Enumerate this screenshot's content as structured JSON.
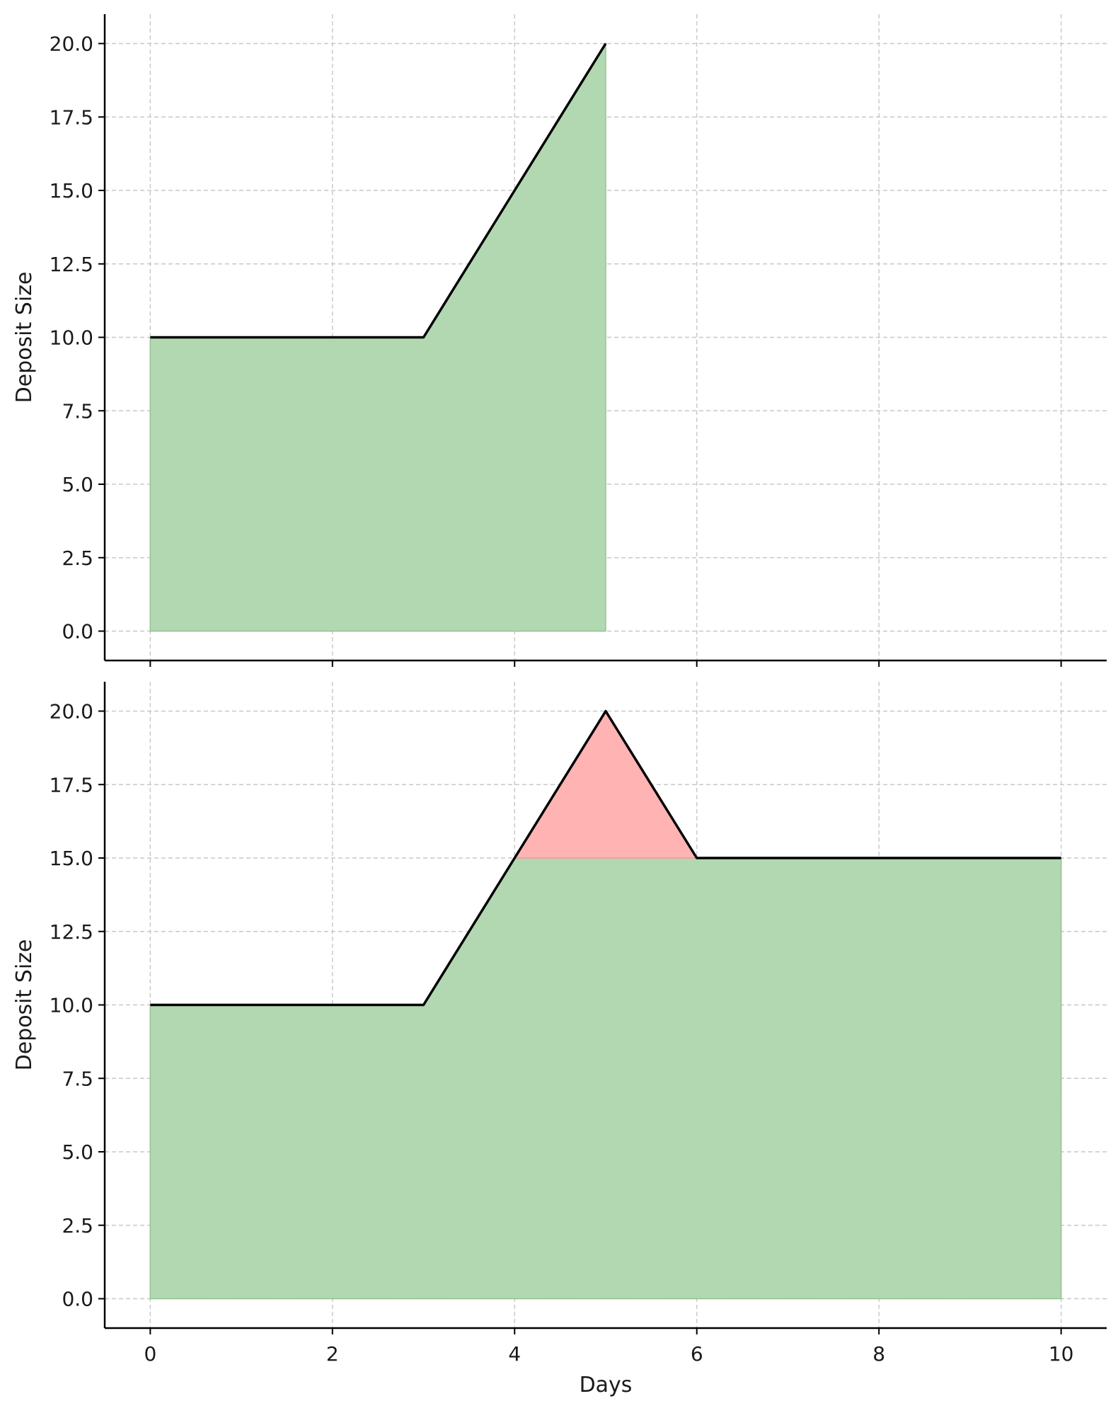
{
  "colors": {
    "area_green": "#b2d8b2",
    "area_red": "#ffb3b3",
    "line": "#000000",
    "grid": "#c8c8c8",
    "axis": "#000000"
  },
  "chart_data": [
    {
      "type": "area",
      "xlabel": "",
      "ylabel": "Deposit Size",
      "xlim": [
        -0.5,
        10.5
      ],
      "ylim": [
        -1,
        21
      ],
      "x_ticks": [
        0,
        2,
        4,
        6,
        8,
        10
      ],
      "x_tick_labels": [
        "",
        "",
        "",
        "",
        "",
        ""
      ],
      "y_ticks": [
        0,
        2.5,
        5,
        7.5,
        10,
        12.5,
        15,
        17.5,
        20
      ],
      "y_tick_labels": [
        "0.0",
        "2.5",
        "5.0",
        "7.5",
        "10.0",
        "12.5",
        "15.0",
        "17.5",
        "20.0"
      ],
      "grid": true,
      "series": [
        {
          "x": [
            0,
            1,
            2,
            3,
            4,
            5
          ],
          "y": [
            10,
            10,
            10,
            10,
            15,
            20
          ]
        }
      ],
      "fills": [
        {
          "color": "green",
          "x": [
            0,
            1,
            2,
            3,
            4,
            5
          ],
          "y_top": [
            10,
            10,
            10,
            10,
            15,
            20
          ],
          "y_bottom": [
            0,
            0,
            0,
            0,
            0,
            0
          ]
        }
      ]
    },
    {
      "type": "area",
      "xlabel": "Days",
      "ylabel": "Deposit Size",
      "xlim": [
        -0.5,
        10.5
      ],
      "ylim": [
        -1,
        21
      ],
      "x_ticks": [
        0,
        2,
        4,
        6,
        8,
        10
      ],
      "x_tick_labels": [
        "0",
        "2",
        "4",
        "6",
        "8",
        "10"
      ],
      "y_ticks": [
        0,
        2.5,
        5,
        7.5,
        10,
        12.5,
        15,
        17.5,
        20
      ],
      "y_tick_labels": [
        "0.0",
        "2.5",
        "5.0",
        "7.5",
        "10.0",
        "12.5",
        "15.0",
        "17.5",
        "20.0"
      ],
      "grid": true,
      "series": [
        {
          "x": [
            0,
            1,
            2,
            3,
            4,
            5,
            6,
            7,
            8,
            9,
            10
          ],
          "y": [
            10,
            10,
            10,
            10,
            15,
            20,
            15,
            15,
            15,
            15,
            15
          ]
        }
      ],
      "fills": [
        {
          "color": "green",
          "x": [
            0,
            1,
            2,
            3,
            4,
            5,
            6,
            7,
            8,
            9,
            10
          ],
          "y_top": [
            10,
            10,
            10,
            10,
            15,
            15,
            15,
            15,
            15,
            15,
            15
          ],
          "y_bottom": [
            0,
            0,
            0,
            0,
            0,
            0,
            0,
            0,
            0,
            0,
            0
          ]
        },
        {
          "color": "red",
          "x": [
            4,
            5,
            6
          ],
          "y_top": [
            15,
            20,
            15
          ],
          "y_bottom": [
            15,
            15,
            15
          ]
        }
      ]
    }
  ]
}
